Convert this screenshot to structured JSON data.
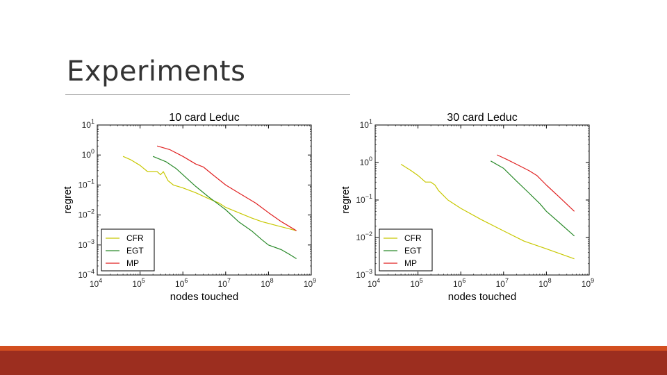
{
  "slide": {
    "title": "Experiments"
  },
  "chart_data": [
    {
      "type": "line",
      "title": "10 card Leduc",
      "xlabel": "nodes touched",
      "ylabel": "regret",
      "xscale": "log",
      "yscale": "log",
      "xlim": [
        10000,
        1000000000
      ],
      "ylim": [
        0.0001,
        10
      ],
      "legend": "bottom-left",
      "xtick_labels": [
        {
          "v": 10000,
          "base": "10",
          "exp": "4"
        },
        {
          "v": 100000,
          "base": "10",
          "exp": "5"
        },
        {
          "v": 1000000,
          "base": "10",
          "exp": "6"
        },
        {
          "v": 10000000,
          "base": "10",
          "exp": "7"
        },
        {
          "v": 100000000,
          "base": "10",
          "exp": "8"
        },
        {
          "v": 1000000000,
          "base": "10",
          "exp": "9"
        }
      ],
      "ytick_labels": [
        {
          "v": 10,
          "base": "10",
          "exp": "1"
        },
        {
          "v": 1,
          "base": "10",
          "exp": "0"
        },
        {
          "v": 0.1,
          "base": "10",
          "exp": "−1"
        },
        {
          "v": 0.01,
          "base": "10",
          "exp": "−2"
        },
        {
          "v": 0.001,
          "base": "10",
          "exp": "−3"
        },
        {
          "v": 0.0001,
          "base": "10",
          "exp": "−4"
        }
      ],
      "series": [
        {
          "name": "CFR",
          "color": "#c8c800",
          "x": [
            40000,
            60000,
            100000,
            150000,
            250000,
            300000,
            350000,
            450000,
            600000,
            1000000,
            2000000,
            4000000,
            7000000,
            10000000,
            20000000,
            40000000,
            70000000,
            150000000,
            450000000
          ],
          "y": [
            0.9,
            0.7,
            0.45,
            0.28,
            0.28,
            0.22,
            0.28,
            0.14,
            0.1,
            0.08,
            0.055,
            0.035,
            0.025,
            0.018,
            0.012,
            0.008,
            0.006,
            0.0045,
            0.003
          ]
        },
        {
          "name": "EGT",
          "color": "#2a8a2a",
          "x": [
            200000,
            400000,
            700000,
            1000000,
            2000000,
            4000000,
            7000000,
            10000000,
            20000000,
            40000000,
            70000000,
            100000000,
            200000000,
            300000000,
            450000000
          ],
          "y": [
            0.9,
            0.6,
            0.35,
            0.22,
            0.09,
            0.04,
            0.022,
            0.015,
            0.006,
            0.003,
            0.0015,
            0.001,
            0.0007,
            0.0005,
            0.00035
          ]
        },
        {
          "name": "MP",
          "color": "#e02020",
          "x": [
            250000,
            500000,
            1000000,
            2000000,
            3000000,
            5000000,
            10000000,
            20000000,
            50000000,
            100000000,
            200000000,
            450000000
          ],
          "y": [
            2.0,
            1.5,
            0.9,
            0.5,
            0.4,
            0.22,
            0.1,
            0.055,
            0.025,
            0.012,
            0.006,
            0.003
          ]
        }
      ]
    },
    {
      "type": "line",
      "title": "30 card Leduc",
      "xlabel": "nodes touched",
      "ylabel": "regret",
      "xscale": "log",
      "yscale": "log",
      "xlim": [
        10000,
        1000000000
      ],
      "ylim": [
        0.001,
        10
      ],
      "legend": "bottom-left",
      "xtick_labels": [
        {
          "v": 10000,
          "base": "10",
          "exp": "4"
        },
        {
          "v": 100000,
          "base": "10",
          "exp": "5"
        },
        {
          "v": 1000000,
          "base": "10",
          "exp": "6"
        },
        {
          "v": 10000000,
          "base": "10",
          "exp": "7"
        },
        {
          "v": 100000000,
          "base": "10",
          "exp": "8"
        },
        {
          "v": 1000000000,
          "base": "10",
          "exp": "9"
        }
      ],
      "ytick_labels": [
        {
          "v": 10,
          "base": "10",
          "exp": "1"
        },
        {
          "v": 1,
          "base": "10",
          "exp": "0"
        },
        {
          "v": 0.1,
          "base": "10",
          "exp": "−1"
        },
        {
          "v": 0.01,
          "base": "10",
          "exp": "−2"
        },
        {
          "v": 0.001,
          "base": "10",
          "exp": "−3"
        }
      ],
      "series": [
        {
          "name": "CFR",
          "color": "#c8c800",
          "x": [
            40000,
            70000,
            100000,
            150000,
            200000,
            250000,
            300000,
            500000,
            1000000,
            3000000,
            10000000,
            30000000,
            100000000,
            450000000
          ],
          "y": [
            0.9,
            0.6,
            0.45,
            0.3,
            0.3,
            0.25,
            0.18,
            0.1,
            0.06,
            0.03,
            0.015,
            0.008,
            0.005,
            0.0027
          ]
        },
        {
          "name": "EGT",
          "color": "#2a8a2a",
          "x": [
            5000000,
            10000000,
            20000000,
            40000000,
            70000000,
            100000000,
            200000000,
            450000000
          ],
          "y": [
            1.1,
            0.7,
            0.32,
            0.15,
            0.08,
            0.05,
            0.025,
            0.011
          ]
        },
        {
          "name": "MP",
          "color": "#e02020",
          "x": [
            7000000,
            12000000,
            20000000,
            40000000,
            60000000,
            100000000,
            200000000,
            450000000
          ],
          "y": [
            1.6,
            1.2,
            0.9,
            0.6,
            0.45,
            0.25,
            0.12,
            0.05
          ]
        }
      ]
    }
  ]
}
